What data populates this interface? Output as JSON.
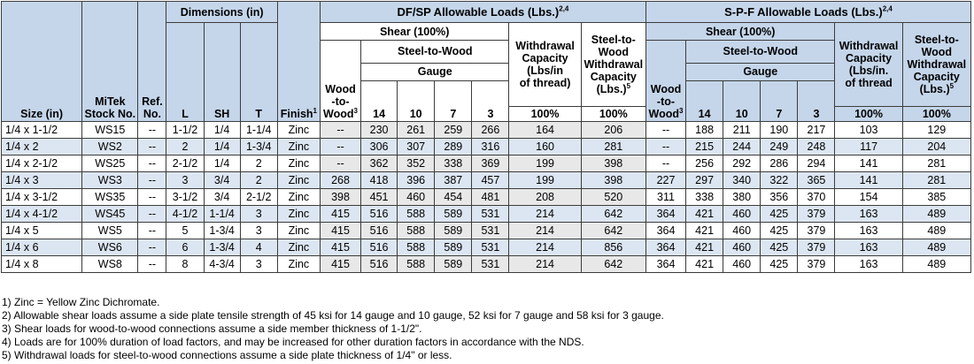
{
  "headers": {
    "size": "Size (in)",
    "stock_l1": "MiTek",
    "stock_l2": "Stock No.",
    "ref_l1": "Ref.",
    "ref_l2": "No.",
    "dimensions": "Dimensions (in)",
    "dim_l": "L",
    "dim_sh": "SH",
    "dim_t": "T",
    "finish": "Finish",
    "finish_note": "1",
    "dfsp_title": "DF/SP Allowable Loads (Lbs.)",
    "dfsp_note": "2,4",
    "spf_title": "S-P-F Allowable Loads (Lbs.)",
    "spf_note": "2,4",
    "shear": "Shear (100%)",
    "steel_to_wood": "Steel-to-Wood",
    "gauge": "Gauge",
    "wood_l1": "Wood",
    "wood_l2": "-to-",
    "wood_l3": "Wood",
    "wood_note": "3",
    "gauges": [
      "14",
      "10",
      "7",
      "3"
    ],
    "dfsp_withdrawal": [
      "Withdrawal",
      "Capacity",
      "(Lbs/in",
      "of thread)"
    ],
    "spf_withdrawal": [
      "Withdrawal",
      "Capacity",
      "(Lbs/in.",
      "of thread"
    ],
    "stw_withdrawal": [
      "Steel-to-",
      "Wood",
      "Withdrawal",
      "Capacity",
      "(Lbs.)"
    ],
    "stw_note": "5",
    "pct": "100%"
  },
  "rows": [
    [
      "1/4 x 1-1/2",
      "WS15",
      "--",
      "1-1/2",
      "1/4",
      "1-1/4",
      "Zinc",
      "--",
      "230",
      "261",
      "259",
      "266",
      "164",
      "206",
      "--",
      "188",
      "211",
      "190",
      "217",
      "103",
      "129"
    ],
    [
      "1/4 x 2",
      "WS2",
      "--",
      "2",
      "1/4",
      "1-3/4",
      "Zinc",
      "--",
      "306",
      "307",
      "289",
      "316",
      "160",
      "281",
      "--",
      "215",
      "244",
      "249",
      "248",
      "117",
      "204"
    ],
    [
      "1/4 x 2-1/2",
      "WS25",
      "--",
      "2-1/2",
      "1/4",
      "2",
      "Zinc",
      "--",
      "362",
      "352",
      "338",
      "369",
      "199",
      "398",
      "--",
      "256",
      "292",
      "286",
      "294",
      "141",
      "281"
    ],
    [
      "1/4 x 3",
      "WS3",
      "--",
      "3",
      "3/4",
      "2",
      "Zinc",
      "268",
      "418",
      "396",
      "387",
      "457",
      "199",
      "398",
      "227",
      "297",
      "340",
      "322",
      "365",
      "141",
      "281"
    ],
    [
      "1/4 x 3-1/2",
      "WS35",
      "--",
      "3-1/2",
      "3/4",
      "2-1/2",
      "Zinc",
      "398",
      "451",
      "460",
      "454",
      "481",
      "208",
      "520",
      "311",
      "338",
      "380",
      "356",
      "370",
      "154",
      "385"
    ],
    [
      "1/4 x 4-1/2",
      "WS45",
      "--",
      "4-1/2",
      "1-1/4",
      "3",
      "Zinc",
      "415",
      "516",
      "588",
      "589",
      "531",
      "214",
      "642",
      "364",
      "421",
      "460",
      "425",
      "379",
      "163",
      "489"
    ],
    [
      "1/4 x 5",
      "WS5",
      "--",
      "5",
      "1-3/4",
      "3",
      "Zinc",
      "415",
      "516",
      "588",
      "589",
      "531",
      "214",
      "642",
      "364",
      "421",
      "460",
      "425",
      "379",
      "163",
      "489"
    ],
    [
      "1/4 x 6",
      "WS6",
      "--",
      "6",
      "1-3/4",
      "4",
      "Zinc",
      "415",
      "516",
      "588",
      "589",
      "531",
      "214",
      "856",
      "364",
      "421",
      "460",
      "425",
      "379",
      "163",
      "489"
    ],
    [
      "1/4 x 8",
      "WS8",
      "--",
      "8",
      "4-3/4",
      "3",
      "Zinc",
      "415",
      "516",
      "588",
      "589",
      "531",
      "214",
      "642",
      "364",
      "421",
      "460",
      "425",
      "379",
      "163",
      "489"
    ]
  ],
  "notes": [
    "1) Zinc = Yellow Zinc Dichromate.",
    "2) Allowable shear loads assume a side plate tensile strength of 45 ksi for 14 gauge and 10 gauge, 52 ksi for 7 gauge and 58 ksi for 3 gauge.",
    "3) Shear loads for wood-to-wood connections assume a side member thickness of 1-1/2\".",
    "4) Loads are for 100% duration of load factors, and may be increased for other duration factors in accordance with the NDS.",
    "5) Withdrawal loads for steel-to-wood connections assume a side plate thickness of 1/4\" or less."
  ],
  "colors": {
    "header_blue": "#c5d6ea",
    "row_blue": "#dce6f2",
    "gray_cell": "#e8e8e8",
    "border": "#3c3c3c"
  }
}
